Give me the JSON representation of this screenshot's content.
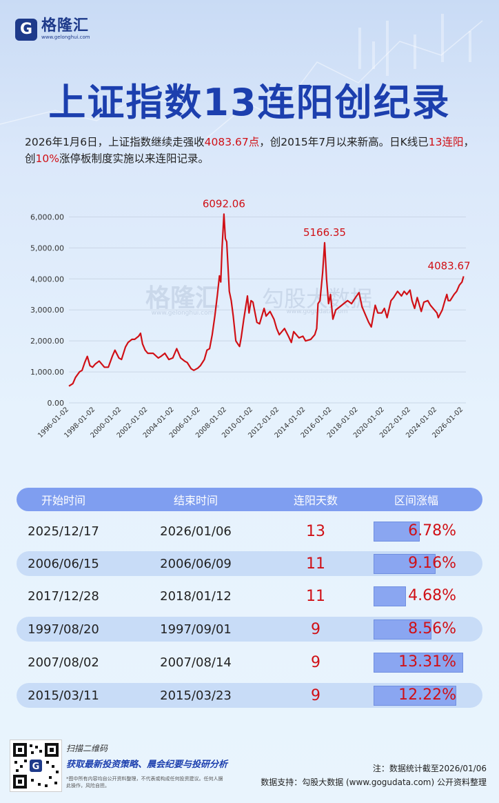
{
  "brand": {
    "logo_char": "G",
    "name": "格隆汇",
    "url": "www.gelonghui.com"
  },
  "title": "上证指数13连阳创纪录",
  "subtitle": {
    "p1": "2026年1月6日，上证指数继续走强收",
    "p2": "4083.67点",
    "p3": "，创2015年7月以来新高。日K线已",
    "p4": "13连阳",
    "p5": "，创",
    "p6": "10%",
    "p7": "涨停板制度实施以来连阳记录。"
  },
  "watermark": {
    "brand": "格隆汇",
    "brand_url": "www.gelonghui.com",
    "partner": "勾股大数据",
    "partner_url": "www.gogudata.com"
  },
  "chart_data": {
    "type": "line",
    "x_ticks": [
      "1996-01-02",
      "1998-01-02",
      "2000-01-02",
      "2002-01-02",
      "2004-01-02",
      "2006-01-02",
      "2008-01-02",
      "2010-01-02",
      "2012-01-02",
      "2014-01-02",
      "2016-01-02",
      "2018-01-02",
      "2020-01-02",
      "2022-01-02",
      "2024-01-02",
      "2026-01-02"
    ],
    "y_ticks": [
      "0.00",
      "1,000.00",
      "2,000.00",
      "3,000.00",
      "4,000.00",
      "5,000.00",
      "6,000.00"
    ],
    "ylim": [
      0,
      6500
    ],
    "xlim": [
      1996.0,
      2026.2
    ],
    "grid": true,
    "series": [
      {
        "color": "#d01016",
        "x": [
          1996.0,
          1996.3,
          1996.5,
          1996.8,
          1997.0,
          1997.2,
          1997.4,
          1997.6,
          1997.8,
          1998.0,
          1998.3,
          1998.5,
          1998.7,
          1999.0,
          1999.3,
          1999.5,
          1999.8,
          2000.0,
          2000.3,
          2000.5,
          2000.8,
          2001.0,
          2001.3,
          2001.45,
          2001.6,
          2001.8,
          2002.0,
          2002.4,
          2002.8,
          2003.0,
          2003.3,
          2003.6,
          2003.9,
          2004.2,
          2004.5,
          2004.8,
          2005.0,
          2005.3,
          2005.5,
          2005.8,
          2006.0,
          2006.3,
          2006.5,
          2006.7,
          2006.9,
          2007.1,
          2007.3,
          2007.45,
          2007.55,
          2007.65,
          2007.79,
          2007.9,
          2008.0,
          2008.2,
          2008.35,
          2008.5,
          2008.7,
          2008.85,
          2008.98,
          2009.1,
          2009.3,
          2009.58,
          2009.7,
          2009.85,
          2010.0,
          2010.3,
          2010.5,
          2010.85,
          2011.0,
          2011.3,
          2011.6,
          2011.8,
          2012.0,
          2012.4,
          2012.7,
          2012.92,
          2013.1,
          2013.5,
          2013.8,
          2014.0,
          2014.4,
          2014.7,
          2014.85,
          2014.95,
          2015.1,
          2015.3,
          2015.45,
          2015.6,
          2015.75,
          2015.9,
          2016.08,
          2016.3,
          2016.6,
          2016.9,
          2017.2,
          2017.5,
          2017.8,
          2018.07,
          2018.3,
          2018.6,
          2018.8,
          2019.0,
          2019.3,
          2019.5,
          2019.8,
          2020.0,
          2020.2,
          2020.5,
          2020.7,
          2021.0,
          2021.3,
          2021.5,
          2021.7,
          2021.95,
          2022.1,
          2022.3,
          2022.5,
          2022.8,
          2023.0,
          2023.3,
          2023.5,
          2023.8,
          2024.0,
          2024.1,
          2024.4,
          2024.6,
          2024.75,
          2024.85,
          2025.0,
          2025.3,
          2025.5,
          2025.7,
          2025.9,
          2026.02
        ],
        "y": [
          540,
          620,
          820,
          1000,
          1050,
          1300,
          1500,
          1200,
          1150,
          1250,
          1350,
          1250,
          1150,
          1150,
          1500,
          1700,
          1450,
          1400,
          1800,
          1950,
          2050,
          2050,
          2150,
          2245,
          1900,
          1700,
          1600,
          1600,
          1450,
          1500,
          1600,
          1400,
          1450,
          1750,
          1450,
          1350,
          1300,
          1100,
          1050,
          1120,
          1200,
          1400,
          1700,
          1750,
          2200,
          2800,
          3500,
          4100,
          3900,
          5000,
          6092,
          5300,
          5200,
          3600,
          3300,
          2800,
          2000,
          1900,
          1820,
          2100,
          2700,
          3450,
          2900,
          3300,
          3250,
          2600,
          2550,
          3050,
          2800,
          2950,
          2700,
          2400,
          2200,
          2400,
          2150,
          1950,
          2300,
          2100,
          2150,
          2000,
          2050,
          2200,
          2400,
          3200,
          3300,
          4200,
          5166,
          4000,
          3200,
          3500,
          2700,
          3000,
          3100,
          3200,
          3300,
          3200,
          3400,
          3560,
          3100,
          2800,
          2600,
          2450,
          3150,
          2900,
          2900,
          3050,
          2750,
          3300,
          3400,
          3600,
          3450,
          3600,
          3500,
          3640,
          3300,
          3050,
          3400,
          2950,
          3250,
          3300,
          3150,
          3000,
          2900,
          2750,
          3000,
          3300,
          3500,
          3300,
          3300,
          3500,
          3600,
          3800,
          3900,
          4083.67
        ],
        "labels": [
          {
            "x": 2007.79,
            "y": 6092.06,
            "text": "6092.06"
          },
          {
            "x": 2015.45,
            "y": 5166.35,
            "text": "5166.35"
          },
          {
            "x": 2026.02,
            "y": 4083.67,
            "text": "4083.67"
          }
        ]
      }
    ]
  },
  "table": {
    "headers": [
      "开始时间",
      "结束时间",
      "连阳天数",
      "区间涨幅"
    ],
    "rows": [
      {
        "start": "2025/12/17",
        "end": "2026/01/06",
        "days": "13",
        "gain": "6.78%",
        "gain_value": 6.78
      },
      {
        "start": "2006/06/15",
        "end": "2006/06/09",
        "days": "11",
        "gain": "9.16%",
        "gain_value": 9.16
      },
      {
        "start": "2017/12/28",
        "end": "2018/01/12",
        "days": "11",
        "gain": "4.68%",
        "gain_value": 4.68
      },
      {
        "start": "1997/08/20",
        "end": "1997/09/01",
        "days": "9",
        "gain": "8.56%",
        "gain_value": 8.56
      },
      {
        "start": "2007/08/02",
        "end": "2007/08/14",
        "days": "9",
        "gain": "13.31%",
        "gain_value": 13.31
      },
      {
        "start": "2015/03/11",
        "end": "2015/03/23",
        "days": "9",
        "gain": "12.22%",
        "gain_value": 12.22
      }
    ]
  },
  "footer": {
    "scan": "扫描二维码",
    "slogan": "获取最新投资策略、晨会纪要与投研分析",
    "disclaimer": "*图中所有内容均自公开资料整理，不代表或构成任何投资建议。任何人据此操作，风险自担。",
    "note": "注：数据统计截至2026/01/06",
    "source": "数据支持：勾股大数据  (www.gogudata.com) 公开资料整理"
  }
}
